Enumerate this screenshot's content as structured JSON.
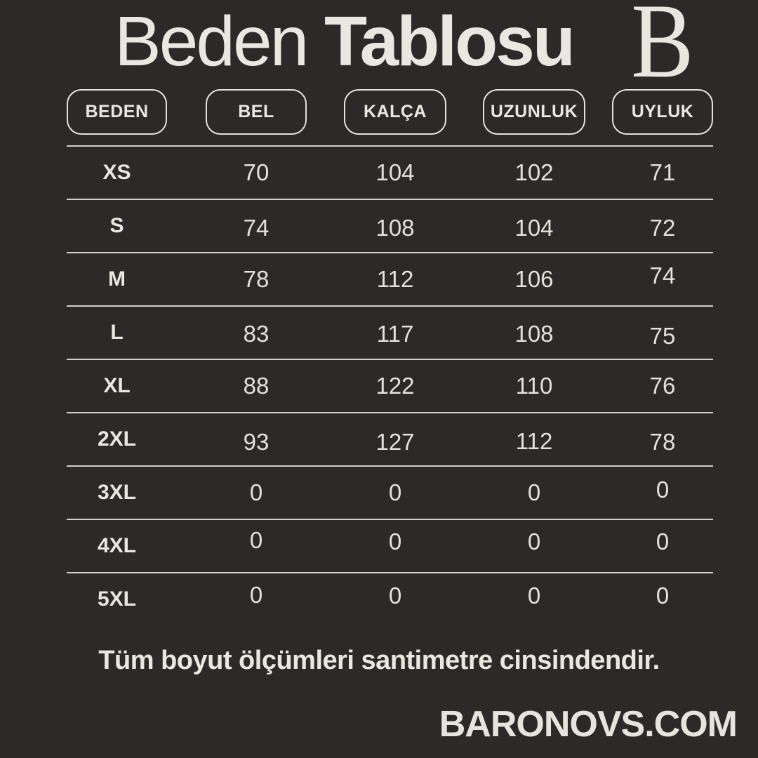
{
  "page": {
    "background_color": "#2b2a28",
    "text_color": "#eae7e0",
    "line_color": "#d3d0c9"
  },
  "header": {
    "title_regular": "Beden",
    "title_bold": "Tablosu",
    "logo_letter": "B"
  },
  "table": {
    "columns": [
      "BEDEN",
      "BEL",
      "KALÇA",
      "UZUNLUK",
      "UYLUK"
    ],
    "rows": [
      {
        "size": "XS",
        "values": [
          "70",
          "104",
          "102",
          "71"
        ]
      },
      {
        "size": "S",
        "values": [
          "74",
          "108",
          "104",
          "72"
        ]
      },
      {
        "size": "M",
        "values": [
          "78",
          "112",
          "106",
          "74"
        ]
      },
      {
        "size": "L",
        "values": [
          "83",
          "117",
          "108",
          "75"
        ]
      },
      {
        "size": "XL",
        "values": [
          "88",
          "122",
          "110",
          "76"
        ]
      },
      {
        "size": "2XL",
        "values": [
          "93",
          "127",
          "112",
          "78"
        ]
      },
      {
        "size": "3XL",
        "values": [
          "0",
          "0",
          "0",
          "0"
        ]
      },
      {
        "size": "4XL",
        "values": [
          "0",
          "0",
          "0",
          "0"
        ]
      },
      {
        "size": "5XL",
        "values": [
          "0",
          "0",
          "0",
          "0"
        ]
      }
    ]
  },
  "footer": {
    "note": "Tüm boyut ölçümleri santimetre cinsindendir.",
    "website": "BARONOVS.COM"
  }
}
